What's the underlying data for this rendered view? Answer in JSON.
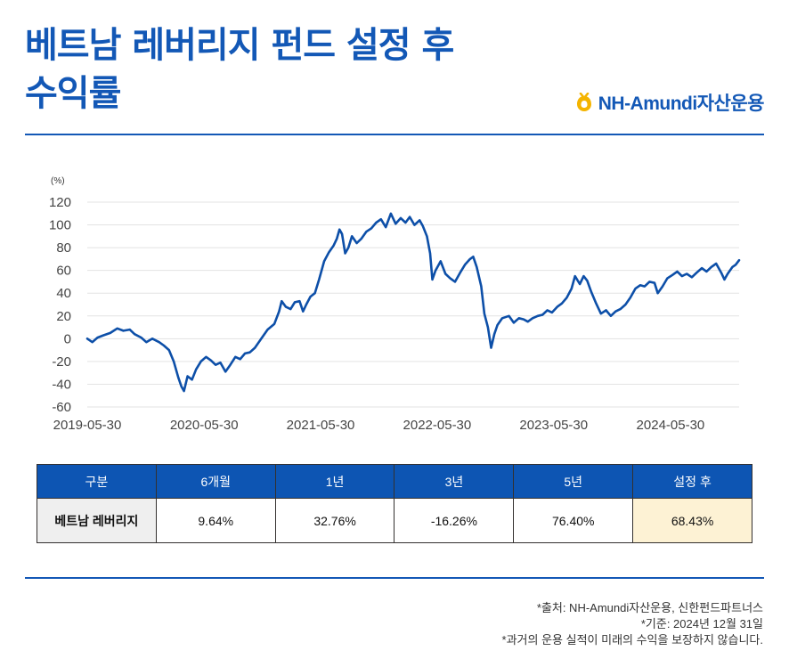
{
  "header": {
    "title_line1": "베트남 레버리지 펀드 설정 후",
    "title_line2": "수익률",
    "logo_text": "NH-Amundi자산운용"
  },
  "colors": {
    "brand_blue": "#1358b6",
    "line": "#0d4fa8",
    "table_header": "#0d55b3",
    "row_header_bg": "#efefef",
    "highlight_bg": "#fdf2d4"
  },
  "chart_data": {
    "type": "line",
    "ylabel": "(%)",
    "ylim": [
      -60,
      120
    ],
    "yticks": [
      -60,
      -40,
      -20,
      0,
      20,
      40,
      60,
      80,
      100,
      120
    ],
    "xlim": [
      "2019-05-30",
      "2024-12-31"
    ],
    "xticks": [
      "2019-05-30",
      "2020-05-30",
      "2021-05-30",
      "2022-05-30",
      "2023-05-30",
      "2024-05-30"
    ],
    "grid": true,
    "series": [
      {
        "values": [
          [
            "2019-05-30",
            0
          ],
          [
            "2019-06-15",
            -3
          ],
          [
            "2019-07-01",
            1
          ],
          [
            "2019-07-20",
            3
          ],
          [
            "2019-08-10",
            5
          ],
          [
            "2019-09-01",
            9
          ],
          [
            "2019-09-20",
            7
          ],
          [
            "2019-10-10",
            8
          ],
          [
            "2019-10-25",
            4
          ],
          [
            "2019-11-15",
            1
          ],
          [
            "2019-12-01",
            -3
          ],
          [
            "2019-12-20",
            0
          ],
          [
            "2020-01-10",
            -3
          ],
          [
            "2020-01-25",
            -6
          ],
          [
            "2020-02-10",
            -10
          ],
          [
            "2020-02-25",
            -20
          ],
          [
            "2020-03-10",
            -34
          ],
          [
            "2020-03-20",
            -42
          ],
          [
            "2020-03-28",
            -46
          ],
          [
            "2020-04-08",
            -33
          ],
          [
            "2020-04-22",
            -36
          ],
          [
            "2020-05-05",
            -27
          ],
          [
            "2020-05-20",
            -20
          ],
          [
            "2020-06-05",
            -16
          ],
          [
            "2020-06-20",
            -19
          ],
          [
            "2020-07-05",
            -23
          ],
          [
            "2020-07-20",
            -21
          ],
          [
            "2020-08-05",
            -29
          ],
          [
            "2020-08-20",
            -23
          ],
          [
            "2020-09-05",
            -16
          ],
          [
            "2020-09-20",
            -18
          ],
          [
            "2020-10-05",
            -13
          ],
          [
            "2020-10-20",
            -12
          ],
          [
            "2020-11-05",
            -8
          ],
          [
            "2020-11-25",
            0
          ],
          [
            "2020-12-15",
            8
          ],
          [
            "2021-01-05",
            13
          ],
          [
            "2021-01-20",
            24
          ],
          [
            "2021-01-28",
            33
          ],
          [
            "2021-02-10",
            28
          ],
          [
            "2021-02-25",
            26
          ],
          [
            "2021-03-10",
            32
          ],
          [
            "2021-03-25",
            33
          ],
          [
            "2021-04-05",
            24
          ],
          [
            "2021-04-15",
            30
          ],
          [
            "2021-04-28",
            37
          ],
          [
            "2021-05-12",
            40
          ],
          [
            "2021-05-25",
            52
          ],
          [
            "2021-06-10",
            68
          ],
          [
            "2021-06-25",
            76
          ],
          [
            "2021-07-10",
            82
          ],
          [
            "2021-07-20",
            88
          ],
          [
            "2021-07-28",
            96
          ],
          [
            "2021-08-05",
            92
          ],
          [
            "2021-08-15",
            75
          ],
          [
            "2021-08-25",
            80
          ],
          [
            "2021-09-05",
            90
          ],
          [
            "2021-09-20",
            84
          ],
          [
            "2021-10-05",
            88
          ],
          [
            "2021-10-20",
            94
          ],
          [
            "2021-11-05",
            97
          ],
          [
            "2021-11-20",
            102
          ],
          [
            "2021-12-05",
            105
          ],
          [
            "2021-12-20",
            98
          ],
          [
            "2022-01-05",
            110
          ],
          [
            "2022-01-20",
            101
          ],
          [
            "2022-02-05",
            106
          ],
          [
            "2022-02-20",
            102
          ],
          [
            "2022-03-05",
            107
          ],
          [
            "2022-03-20",
            100
          ],
          [
            "2022-04-05",
            104
          ],
          [
            "2022-04-15",
            99
          ],
          [
            "2022-04-28",
            90
          ],
          [
            "2022-05-08",
            75
          ],
          [
            "2022-05-15",
            52
          ],
          [
            "2022-05-25",
            60
          ],
          [
            "2022-06-10",
            68
          ],
          [
            "2022-06-25",
            57
          ],
          [
            "2022-07-10",
            53
          ],
          [
            "2022-07-25",
            50
          ],
          [
            "2022-08-10",
            58
          ],
          [
            "2022-08-25",
            65
          ],
          [
            "2022-09-10",
            70
          ],
          [
            "2022-09-20",
            72
          ],
          [
            "2022-10-01",
            63
          ],
          [
            "2022-10-15",
            46
          ],
          [
            "2022-10-25",
            22
          ],
          [
            "2022-11-05",
            10
          ],
          [
            "2022-11-15",
            -8
          ],
          [
            "2022-11-25",
            4
          ],
          [
            "2022-12-05",
            12
          ],
          [
            "2022-12-20",
            18
          ],
          [
            "2023-01-10",
            20
          ],
          [
            "2023-01-25",
            14
          ],
          [
            "2023-02-10",
            18
          ],
          [
            "2023-02-25",
            17
          ],
          [
            "2023-03-10",
            15
          ],
          [
            "2023-03-25",
            18
          ],
          [
            "2023-04-10",
            20
          ],
          [
            "2023-04-25",
            21
          ],
          [
            "2023-05-10",
            25
          ],
          [
            "2023-05-25",
            23
          ],
          [
            "2023-06-10",
            28
          ],
          [
            "2023-06-25",
            31
          ],
          [
            "2023-07-10",
            36
          ],
          [
            "2023-07-25",
            44
          ],
          [
            "2023-08-05",
            55
          ],
          [
            "2023-08-20",
            48
          ],
          [
            "2023-09-01",
            55
          ],
          [
            "2023-09-12",
            51
          ],
          [
            "2023-09-25",
            41
          ],
          [
            "2023-10-10",
            31
          ],
          [
            "2023-10-25",
            22
          ],
          [
            "2023-11-10",
            25
          ],
          [
            "2023-11-25",
            20
          ],
          [
            "2023-12-10",
            24
          ],
          [
            "2023-12-25",
            26
          ],
          [
            "2024-01-10",
            30
          ],
          [
            "2024-01-25",
            36
          ],
          [
            "2024-02-10",
            44
          ],
          [
            "2024-02-25",
            47
          ],
          [
            "2024-03-10",
            46
          ],
          [
            "2024-03-25",
            50
          ],
          [
            "2024-04-10",
            49
          ],
          [
            "2024-04-20",
            40
          ],
          [
            "2024-05-05",
            46
          ],
          [
            "2024-05-20",
            53
          ],
          [
            "2024-06-05",
            56
          ],
          [
            "2024-06-20",
            59
          ],
          [
            "2024-07-05",
            55
          ],
          [
            "2024-07-20",
            57
          ],
          [
            "2024-08-05",
            54
          ],
          [
            "2024-08-20",
            58
          ],
          [
            "2024-09-05",
            62
          ],
          [
            "2024-09-20",
            59
          ],
          [
            "2024-10-05",
            63
          ],
          [
            "2024-10-20",
            66
          ],
          [
            "2024-11-05",
            58
          ],
          [
            "2024-11-15",
            52
          ],
          [
            "2024-11-25",
            57
          ],
          [
            "2024-12-10",
            63
          ],
          [
            "2024-12-20",
            65
          ],
          [
            "2024-12-31",
            69
          ]
        ]
      }
    ]
  },
  "table": {
    "headers": [
      "구분",
      "6개월",
      "1년",
      "3년",
      "5년",
      "설정 후"
    ],
    "rows": [
      [
        "베트남 레버리지",
        "9.64%",
        "32.76%",
        "-16.26%",
        "76.40%",
        "68.43%"
      ]
    ]
  },
  "notes": [
    "*출처: NH-Amundi자산운용, 신한펀드파트너스",
    "*기준: 2024년 12월 31일",
    "*과거의 운용 실적이 미래의 수익을 보장하지 않습니다."
  ]
}
